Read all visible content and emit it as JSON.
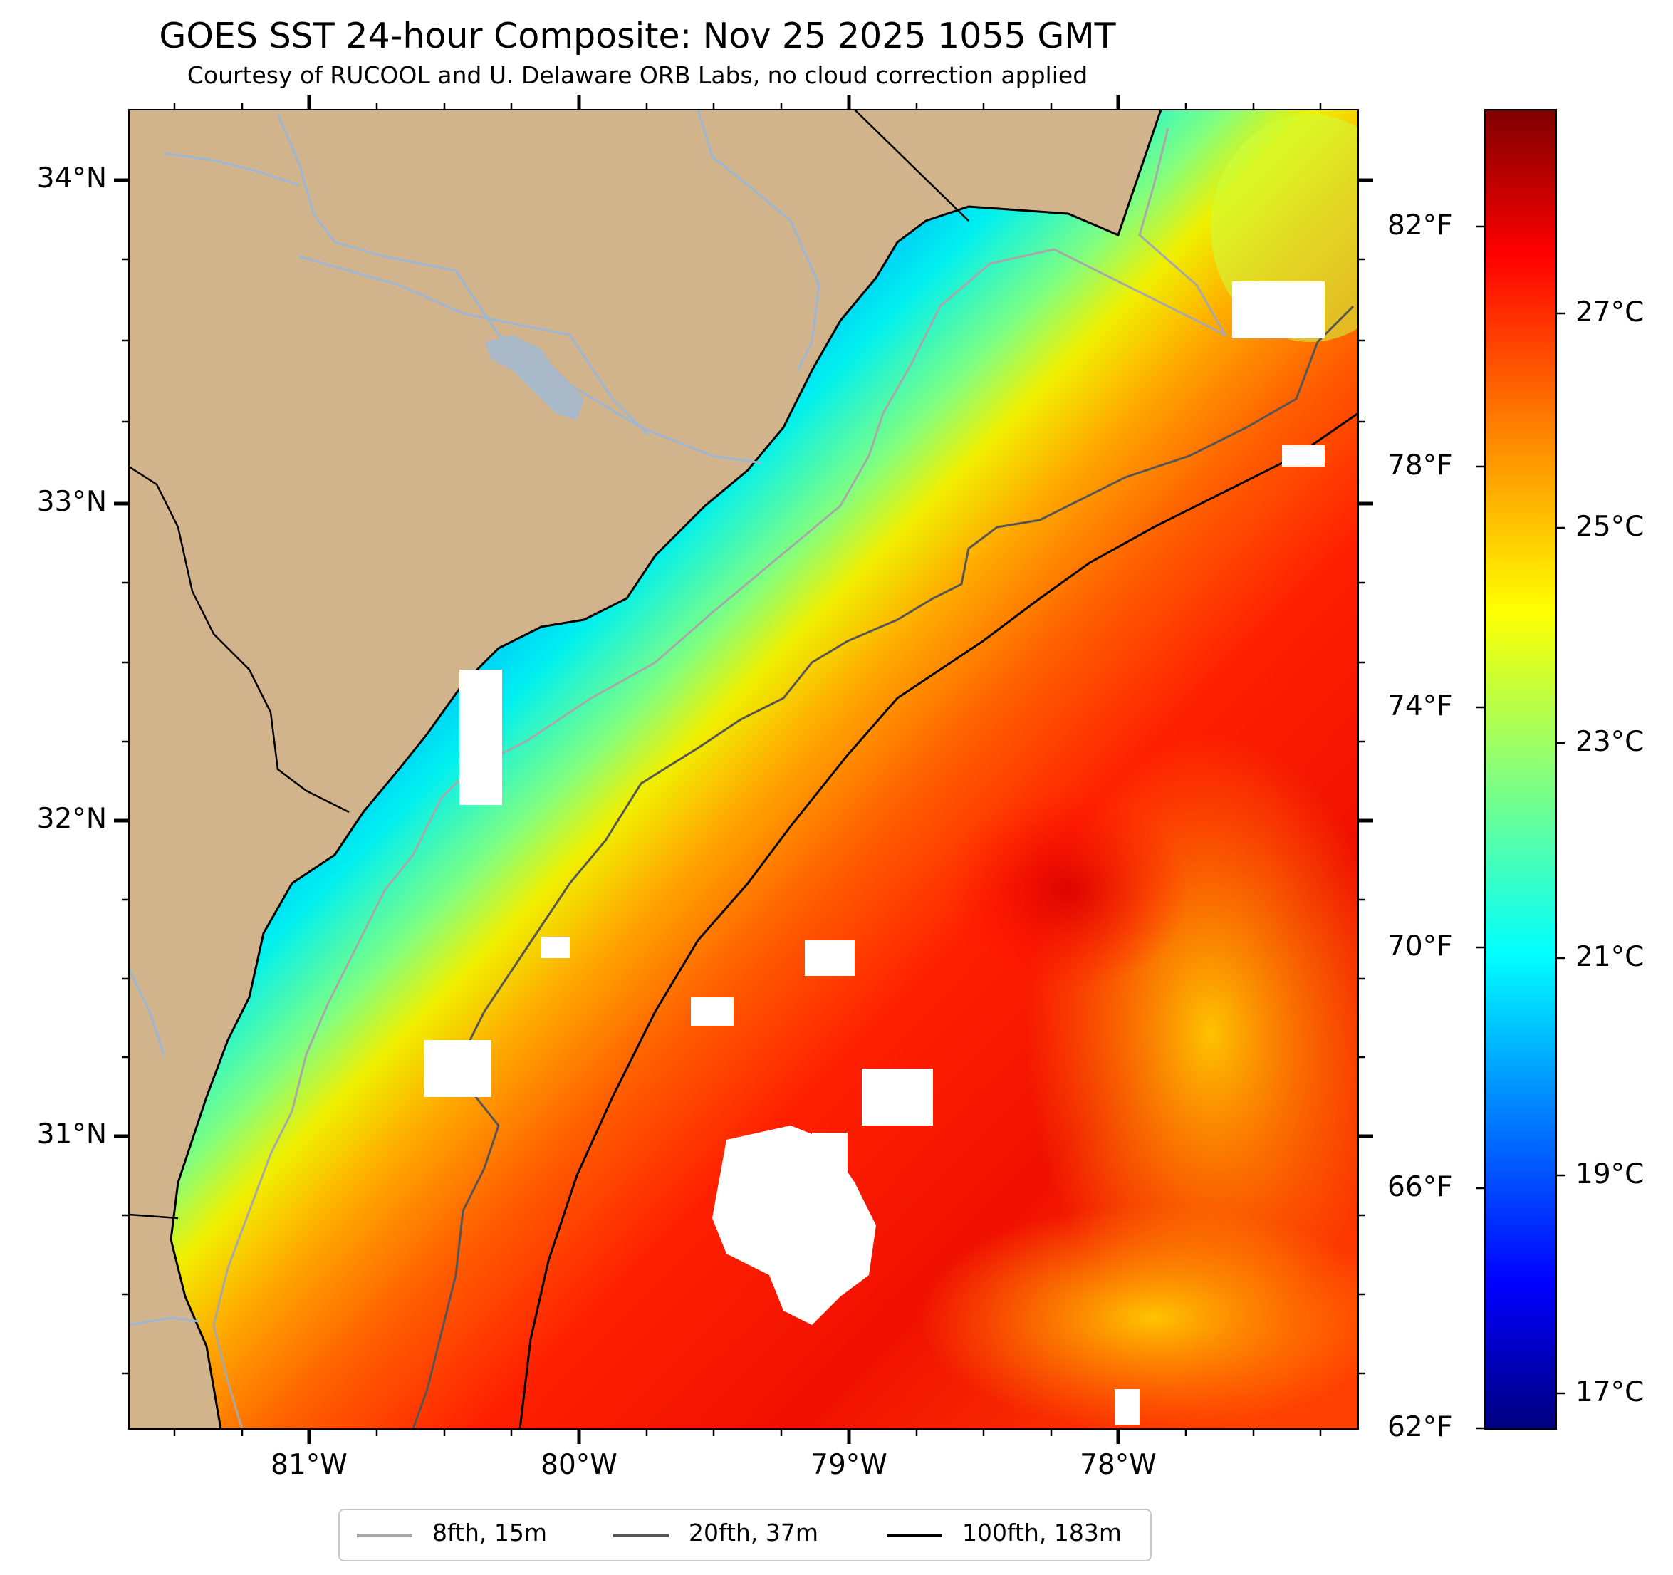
{
  "title": "GOES SST 24-hour Composite: Nov 25 2025 1055 GMT",
  "subtitle": "Courtesy of RUCOOL and U. Delaware ORB Labs, no cloud correction applied",
  "map": {
    "lat_labels": [
      "34°N",
      "33°N",
      "32°N",
      "31°N"
    ],
    "lon_labels": [
      "81°W",
      "80°W",
      "79°W",
      "78°W"
    ],
    "extent": {
      "lon_min": -81.67,
      "lon_max": -77.12,
      "lat_min": 30.1,
      "lat_max": 34.22
    },
    "land_color": "#d2b48c",
    "river_color": "#9bb7d4",
    "cloud_mask_color": "#ffffff"
  },
  "colorbar": {
    "fahrenheit_labels": [
      "82°F",
      "78°F",
      "74°F",
      "70°F",
      "66°F",
      "62°F"
    ],
    "celsius_labels": [
      "27°C",
      "25°C",
      "23°C",
      "21°C",
      "19°C",
      "17°C"
    ],
    "colormap": "jet",
    "colors": [
      "#00007f",
      "#0000ff",
      "#0080ff",
      "#00ffff",
      "#80ff80",
      "#ffff00",
      "#ff8000",
      "#ff0000",
      "#7f0000"
    ]
  },
  "legend": {
    "items": [
      {
        "label": "8fth, 15m",
        "color": "#a8a8a8"
      },
      {
        "label": "20fth, 37m",
        "color": "#555555"
      },
      {
        "label": "100fth, 183m",
        "color": "#000000"
      }
    ]
  }
}
